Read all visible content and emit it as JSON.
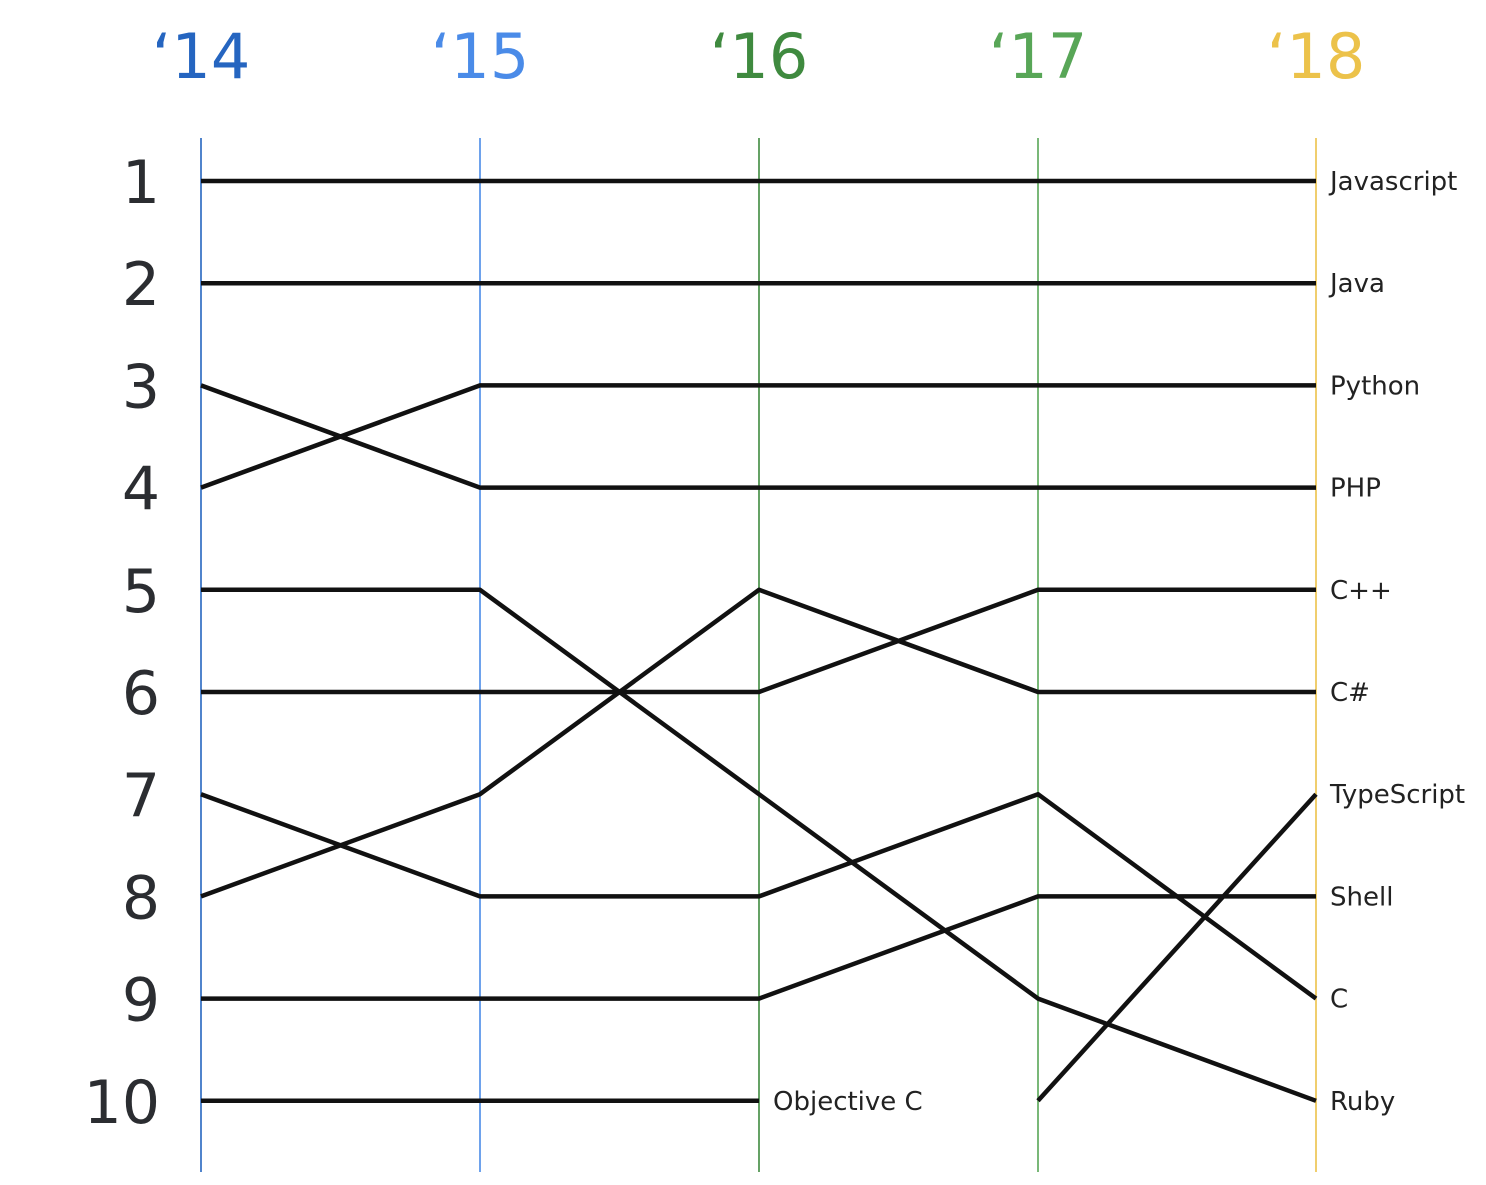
{
  "chart_data": {
    "type": "line",
    "title": "",
    "xlabel": "",
    "ylabel": "",
    "x": [
      "'14",
      "'15",
      "'16",
      "'17",
      "'18"
    ],
    "x_tick_labels": [
      "‘14",
      "‘15",
      "‘16",
      "‘17",
      "‘18"
    ],
    "x_tick_colors": [
      "#2565c0",
      "#4a8be8",
      "#3f8a3f",
      "#58a657",
      "#ecc24a"
    ],
    "y_tick_labels": [
      "1",
      "2",
      "3",
      "4",
      "5",
      "6",
      "7",
      "8",
      "9",
      "10"
    ],
    "ylim": [
      1,
      10
    ],
    "y_inverted": true,
    "grid": false,
    "legend": "series labels at right end of each line",
    "line_color": "#111111",
    "series": [
      {
        "name": "Javascript",
        "values": [
          1,
          1,
          1,
          1,
          1
        ],
        "label_at": "end"
      },
      {
        "name": "Java",
        "values": [
          2,
          2,
          2,
          2,
          2
        ],
        "label_at": "end"
      },
      {
        "name": "Python",
        "values": [
          4,
          3,
          3,
          3,
          3
        ],
        "label_at": "end"
      },
      {
        "name": "PHP",
        "values": [
          3,
          4,
          4,
          4,
          4
        ],
        "label_at": "end"
      },
      {
        "name": "C++",
        "values": [
          6,
          6,
          6,
          5,
          5
        ],
        "label_at": "end"
      },
      {
        "name": "C#",
        "values": [
          8,
          7,
          5,
          6,
          6
        ],
        "label_at": "end"
      },
      {
        "name": "TypeScript",
        "values": [
          null,
          null,
          null,
          10,
          7
        ],
        "label_at": "end"
      },
      {
        "name": "Shell",
        "values": [
          9,
          9,
          9,
          8,
          8
        ],
        "label_at": "end"
      },
      {
        "name": "C",
        "values": [
          7,
          8,
          8,
          7,
          9
        ],
        "label_at": "end"
      },
      {
        "name": "Ruby",
        "values": [
          5,
          5,
          7,
          9,
          10
        ],
        "label_at": "end"
      },
      {
        "name": "Objective C",
        "values": [
          10,
          10,
          10,
          null,
          null
        ],
        "label_at": "last"
      }
    ]
  }
}
